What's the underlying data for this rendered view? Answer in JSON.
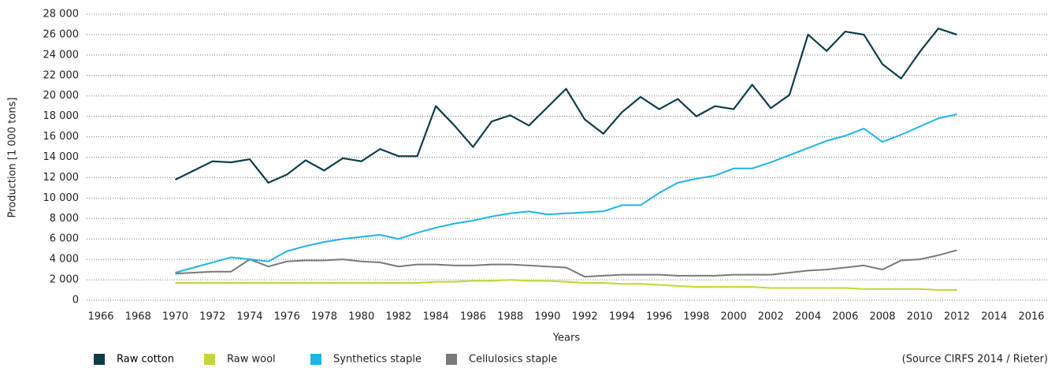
{
  "chart_data": {
    "type": "line",
    "y_label": "Production [1 000 tons]",
    "x_label": "Years",
    "source": "(Source CIRFS 2014 / Rieter)",
    "x": [
      1970,
      1971,
      1972,
      1973,
      1974,
      1975,
      1976,
      1977,
      1978,
      1979,
      1980,
      1981,
      1982,
      1983,
      1984,
      1985,
      1986,
      1987,
      1988,
      1989,
      1990,
      1991,
      1992,
      1993,
      1994,
      1995,
      1996,
      1997,
      1998,
      1999,
      2000,
      2001,
      2002,
      2003,
      2004,
      2005,
      2006,
      2007,
      2008,
      2009,
      2010,
      2011,
      2012
    ],
    "series": [
      {
        "name": "Raw cotton",
        "color": "#0d3d4a",
        "values": [
          11800,
          12700,
          13600,
          13500,
          13800,
          11500,
          12300,
          13700,
          12700,
          13900,
          13600,
          14800,
          14100,
          14100,
          19000,
          17100,
          15000,
          17500,
          18100,
          17100,
          18900,
          20700,
          17700,
          16300,
          18400,
          19900,
          18700,
          19700,
          18000,
          19000,
          18700,
          21100,
          18800,
          20100,
          26000,
          24400,
          26300,
          26000,
          23100,
          21700,
          24300,
          26600,
          26000
        ]
      },
      {
        "name": "Raw wool",
        "color": "#c3d730",
        "values": [
          1700,
          1700,
          1700,
          1700,
          1700,
          1700,
          1700,
          1700,
          1700,
          1700,
          1700,
          1700,
          1700,
          1700,
          1800,
          1800,
          1900,
          1900,
          2000,
          1900,
          1900,
          1800,
          1700,
          1700,
          1600,
          1600,
          1500,
          1400,
          1300,
          1300,
          1300,
          1300,
          1200,
          1200,
          1200,
          1200,
          1200,
          1100,
          1100,
          1100,
          1100,
          1000,
          1000
        ]
      },
      {
        "name": "Synthetics staple",
        "color": "#1eb4e6",
        "values": [
          2700,
          3200,
          3700,
          4200,
          4000,
          3800,
          4800,
          5300,
          5700,
          6000,
          6200,
          6400,
          6000,
          6600,
          7100,
          7500,
          7800,
          8200,
          8500,
          8700,
          8400,
          8500,
          8600,
          8700,
          9300,
          9300,
          10500,
          11500,
          11900,
          12200,
          12900,
          12900,
          13500,
          14200,
          14900,
          15600,
          16100,
          16800,
          15500,
          16200,
          17000,
          17800,
          18200
        ]
      },
      {
        "name": "Cellulosics staple",
        "color": "#7a7a7a",
        "values": [
          2600,
          2700,
          2800,
          2800,
          4000,
          3300,
          3800,
          3900,
          3900,
          4000,
          3800,
          3700,
          3300,
          3500,
          3500,
          3400,
          3400,
          3500,
          3500,
          3400,
          3300,
          3200,
          2300,
          2400,
          2500,
          2500,
          2500,
          2400,
          2400,
          2400,
          2500,
          2500,
          2500,
          2700,
          2900,
          3000,
          3200,
          3400,
          3000,
          3900,
          4000,
          4400,
          4900
        ]
      }
    ],
    "xlim": [
      1966,
      2016
    ],
    "xticks": [
      1966,
      1968,
      1970,
      1972,
      1974,
      1976,
      1978,
      1980,
      1982,
      1984,
      1986,
      1988,
      1990,
      1992,
      1994,
      1996,
      1998,
      2000,
      2002,
      2004,
      2006,
      2008,
      2010,
      2012,
      2014,
      2016
    ],
    "ylim": [
      0,
      28000
    ],
    "yticks": [
      0,
      {
        "value": 2000,
        "label": "2 000"
      },
      {
        "value": 4000,
        "label": "4 000"
      },
      {
        "value": 6000,
        "label": "6 000"
      },
      {
        "value": 8000,
        "label": "8 000"
      },
      {
        "value": 10000,
        "label": "10 000"
      },
      {
        "value": 12000,
        "label": "12 000"
      },
      {
        "value": 14000,
        "label": "14 000"
      },
      {
        "value": 16000,
        "label": "16 000"
      },
      {
        "value": 18000,
        "label": "18 000"
      },
      {
        "value": 20000,
        "label": "20 000"
      },
      {
        "value": 22000,
        "label": "22 000"
      },
      {
        "value": 24000,
        "label": "24 000"
      },
      {
        "value": 26000,
        "label": "26 000"
      },
      {
        "value": 28000,
        "label": "28 000"
      }
    ],
    "grid": true
  }
}
